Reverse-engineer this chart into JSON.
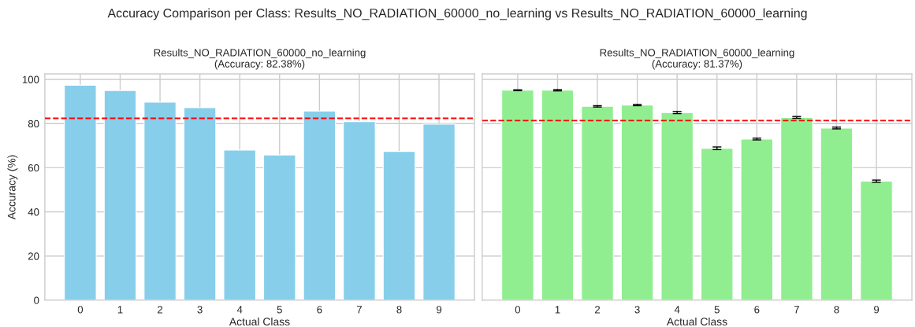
{
  "chart_data": [
    {
      "type": "bar",
      "title": "Results_NO_RADIATION_60000_no_learning\n(Accuracy: 82.38%)",
      "xlabel": "Actual Class",
      "ylabel": "Accuracy (%)",
      "annotations": [
        "Accuracy Comparison per Class: Results_NO_RADIATION_60000_no_learning vs Results_NO_RADIATION_60000_learning"
      ],
      "categories": [
        "0",
        "1",
        "2",
        "3",
        "4",
        "5",
        "6",
        "7",
        "8",
        "9"
      ],
      "values": [
        97.4,
        95.0,
        89.7,
        87.2,
        68.0,
        65.8,
        85.7,
        80.9,
        67.4,
        79.7
      ],
      "color": "#87ceeb",
      "ylim": [
        0,
        102.5
      ],
      "yticks": [
        0,
        20,
        40,
        60,
        80,
        100
      ],
      "grid": true,
      "ref_lines": [
        {
          "axis": "y",
          "value": 82.38,
          "color": "#ff0000",
          "line_style": "dashed"
        }
      ]
    },
    {
      "type": "bar",
      "title": "Results_NO_RADIATION_60000_learning\n(Accuracy: 81.37%)",
      "xlabel": "Actual Class",
      "categories": [
        "0",
        "1",
        "2",
        "3",
        "4",
        "5",
        "6",
        "7",
        "8",
        "9"
      ],
      "values": [
        95.1,
        95.1,
        87.8,
        88.4,
        85.0,
        68.8,
        73.0,
        82.8,
        78.0,
        53.9
      ],
      "color": "#90ee90",
      "errors": [
        0.2,
        0.3,
        0.3,
        0.3,
        0.5,
        0.6,
        0.4,
        0.4,
        0.4,
        0.5
      ],
      "ylim": [
        0,
        102.5
      ],
      "yticks": [
        0,
        20,
        40,
        60,
        80,
        100
      ],
      "grid": true,
      "tick_labels": "x",
      "ref_lines": [
        {
          "axis": "y",
          "value": 81.37,
          "color": "#ff0000",
          "line_style": "dashed"
        }
      ]
    }
  ]
}
